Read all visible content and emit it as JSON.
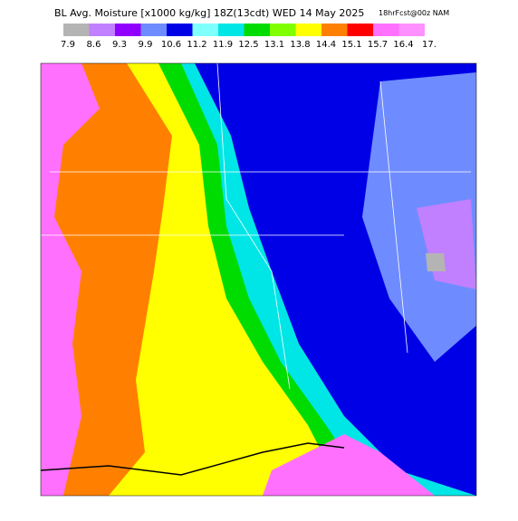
{
  "header": {
    "title": "BL Avg. Moisture [x1000 kg/kg] 18Z(13cdt) WED 14 May 2025",
    "source": "18hrFcst@00z NAM"
  },
  "colorbar": {
    "colors": [
      "#b4b4b4",
      "#c080ff",
      "#9000ff",
      "#6e8cff",
      "#0000e6",
      "#80ffff",
      "#00e6e6",
      "#00dc00",
      "#80ff00",
      "#ffff00",
      "#ff8000",
      "#ff0000",
      "#ff70ff",
      "#ff90ff"
    ],
    "labels": [
      "7.9",
      "8.6",
      "9.3",
      "9.9",
      "10.6",
      "11.2",
      "11.9",
      "12.5",
      "13.1",
      "13.8",
      "14.4",
      "15.1",
      "15.7",
      "16.4",
      "17."
    ]
  }
}
